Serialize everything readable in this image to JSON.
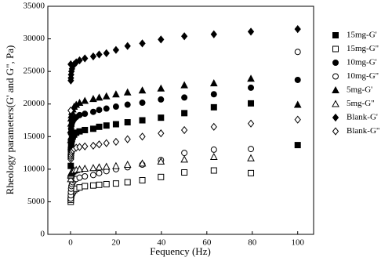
{
  "chart_data": {
    "type": "scatter",
    "x_label": "Fequency (Hz)",
    "y_label": "Rheology parameters(G' and G\", Pa)",
    "x": [
      0.1,
      0.13,
      0.16,
      0.25,
      0.4,
      0.63,
      1,
      1.58,
      2.5,
      3.98,
      6.31,
      10,
      12.6,
      15.8,
      20,
      25.1,
      31.6,
      39.8,
      50.1,
      63.1,
      79.4,
      100
    ],
    "xlim": [
      -10,
      107
    ],
    "xticks": [
      0,
      20,
      40,
      60,
      80,
      100
    ],
    "ylim": [
      0,
      35000
    ],
    "yticks": [
      0,
      5000,
      10000,
      15000,
      20000,
      25000,
      30000,
      35000
    ],
    "legend": "right",
    "series": [
      {
        "name": "15mg-G'",
        "color": "#000000",
        "marker": "square",
        "values": [
          10500,
          12000,
          13000,
          13700,
          14200,
          14600,
          15000,
          15300,
          15600,
          15800,
          16000,
          16200,
          16500,
          16700,
          16900,
          17200,
          17500,
          17900,
          18600,
          19500,
          20100,
          13700
        ]
      },
      {
        "name": "15mg-G\"",
        "color": "#000000",
        "marker": "square-open",
        "values": [
          5000,
          5300,
          5600,
          5900,
          6200,
          6400,
          6600,
          6800,
          7000,
          7200,
          7400,
          7500,
          7600,
          7700,
          7800,
          8000,
          8300,
          8800,
          9500,
          9800,
          9400,
          null
        ]
      },
      {
        "name": "10mg-G'",
        "color": "#000000",
        "marker": "circle",
        "values": [
          13000,
          14500,
          15500,
          16200,
          16700,
          17100,
          17400,
          17700,
          18000,
          18300,
          18500,
          18800,
          19100,
          19300,
          19600,
          19900,
          20200,
          20700,
          21000,
          21500,
          22500,
          23700
        ]
      },
      {
        "name": "10mg-G\"",
        "color": "#000000",
        "marker": "circle-open",
        "values": [
          5500,
          6000,
          6500,
          7000,
          7400,
          7700,
          8000,
          8300,
          8500,
          8700,
          8900,
          9100,
          9400,
          9700,
          10000,
          10300,
          10700,
          11400,
          12500,
          13000,
          13100,
          28000
        ]
      },
      {
        "name": "5mg-G'",
        "color": "#000000",
        "marker": "triangle",
        "values": [
          14500,
          16000,
          17000,
          17800,
          18300,
          18800,
          19200,
          19600,
          19900,
          20200,
          20500,
          20800,
          21000,
          21200,
          21500,
          21800,
          22100,
          22400,
          22900,
          23200,
          23900,
          19900
        ]
      },
      {
        "name": "5mg-G\"",
        "color": "#000000",
        "marker": "triangle-open",
        "values": [
          8500,
          9000,
          9200,
          9400,
          9500,
          9600,
          9700,
          9800,
          9900,
          10000,
          10100,
          10200,
          10300,
          10400,
          10500,
          10700,
          10900,
          11200,
          11500,
          11900,
          11700,
          null
        ]
      },
      {
        "name": "Blank-G'",
        "color": "#000000",
        "marker": "diamond",
        "values": [
          26100,
          23600,
          24000,
          24500,
          25000,
          25400,
          25800,
          26100,
          26400,
          26700,
          27000,
          27300,
          27600,
          27800,
          28300,
          28900,
          29300,
          29900,
          30400,
          30700,
          31100,
          31500
        ]
      },
      {
        "name": "Blank-G\"",
        "color": "#000000",
        "marker": "diamond-open",
        "values": [
          19000,
          11500,
          11800,
          12100,
          12400,
          12700,
          12900,
          13100,
          13300,
          13400,
          13500,
          13600,
          13800,
          14000,
          14200,
          14600,
          15000,
          15500,
          16000,
          16500,
          17000,
          17600
        ]
      }
    ]
  }
}
